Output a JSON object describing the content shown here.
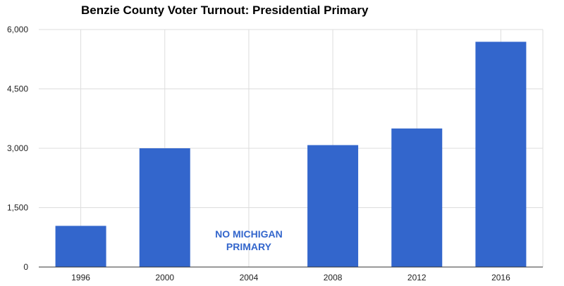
{
  "chart_data": {
    "type": "bar",
    "title": "Benzie County Voter Turnout: Presidential Primary",
    "xlabel": "",
    "ylabel": "",
    "categories": [
      "1996",
      "2000",
      "2004",
      "2008",
      "2012",
      "2016"
    ],
    "values": [
      1040,
      3000,
      null,
      3080,
      3500,
      5690
    ],
    "ylim": [
      0,
      6000
    ],
    "yticks": [
      0,
      1500,
      3000,
      4500,
      6000
    ],
    "ytick_labels": [
      "0",
      "1,500",
      "3,000",
      "4,500",
      "6,000"
    ],
    "grid": true,
    "legend": "none",
    "colors": {
      "bar": "#3366cc",
      "grid": "#dddddd",
      "baseline": "#333333",
      "annotation": "#3366cc"
    },
    "annotations": [
      {
        "category": "2004",
        "lines": [
          "NO MICHIGAN",
          "PRIMARY"
        ]
      }
    ]
  }
}
